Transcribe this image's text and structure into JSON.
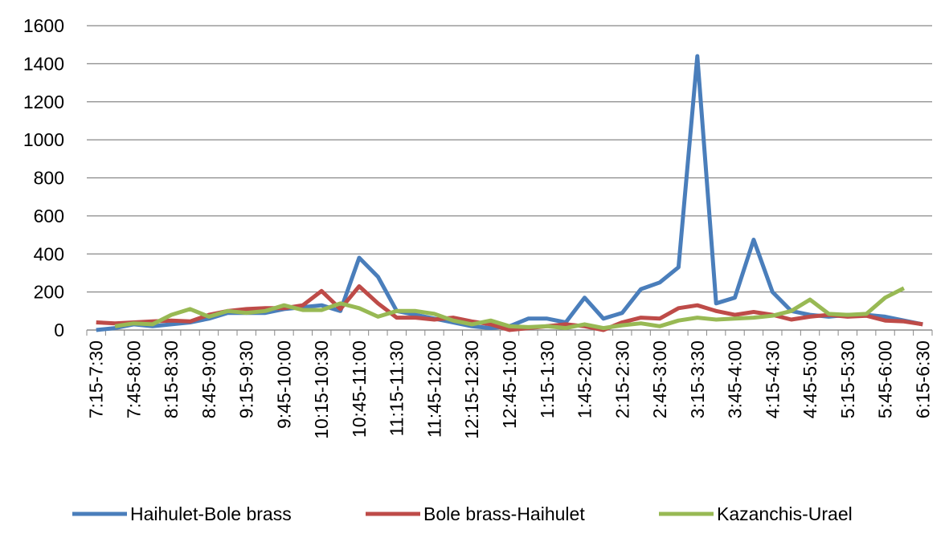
{
  "chart_data": {
    "type": "line",
    "categories": [
      "7:15-7:30",
      null,
      "7:45-8:00",
      null,
      "8:15-8:30",
      null,
      "8:45-9:00",
      null,
      "9:15-9:30",
      null,
      "9:45-10:00",
      null,
      "10:15-10:30",
      null,
      "10:45-11:00",
      null,
      "11:15-11:30",
      null,
      "11:45-12:00",
      null,
      "12:15-12:30",
      null,
      "12:45-1:00",
      null,
      "1:15-1:30",
      null,
      "1:45-2:00",
      null,
      "2:15-2:30",
      null,
      "2:45-3:00",
      null,
      "3:15-3:30",
      null,
      "3:45-4:00",
      null,
      "4:15-4:30",
      null,
      "4:45-5:00",
      null,
      "5:15-5:30",
      null,
      "5:45-6:00",
      null,
      "6:15-6:30"
    ],
    "series": [
      {
        "name": "Haihulet-Bole brass",
        "color": "#4a7ebb",
        "values": [
          0,
          10,
          30,
          20,
          30,
          40,
          60,
          90,
          90,
          90,
          110,
          120,
          130,
          100,
          380,
          280,
          100,
          80,
          60,
          40,
          20,
          10,
          20,
          60,
          60,
          40,
          170,
          60,
          90,
          215,
          250,
          330,
          1440,
          140,
          170,
          475,
          200,
          100,
          80,
          70,
          80,
          80,
          70,
          50,
          30
        ]
      },
      {
        "name": "Bole brass-Haihulet",
        "color": "#be4b48",
        "values": [
          40,
          35,
          40,
          45,
          50,
          45,
          80,
          100,
          110,
          115,
          115,
          130,
          205,
          110,
          230,
          140,
          65,
          65,
          55,
          65,
          45,
          30,
          0,
          10,
          20,
          30,
          20,
          0,
          40,
          65,
          60,
          115,
          130,
          100,
          80,
          95,
          80,
          55,
          70,
          80,
          70,
          75,
          50,
          45,
          30
        ]
      },
      {
        "name": "Kazanchis-Urael",
        "color": "#98b954",
        "values": [
          null,
          20,
          35,
          30,
          80,
          110,
          70,
          100,
          90,
          100,
          130,
          105,
          105,
          140,
          115,
          70,
          100,
          100,
          85,
          50,
          30,
          50,
          20,
          15,
          20,
          10,
          30,
          10,
          25,
          35,
          20,
          50,
          65,
          55,
          60,
          65,
          75,
          100,
          160,
          85,
          80,
          85,
          170,
          220,
          null
        ]
      }
    ],
    "ylim": [
      0,
      1600
    ],
    "yticks": [
      0,
      200,
      400,
      600,
      800,
      1000,
      1200,
      1400,
      1600
    ],
    "grid": true,
    "legend": "bottom"
  }
}
